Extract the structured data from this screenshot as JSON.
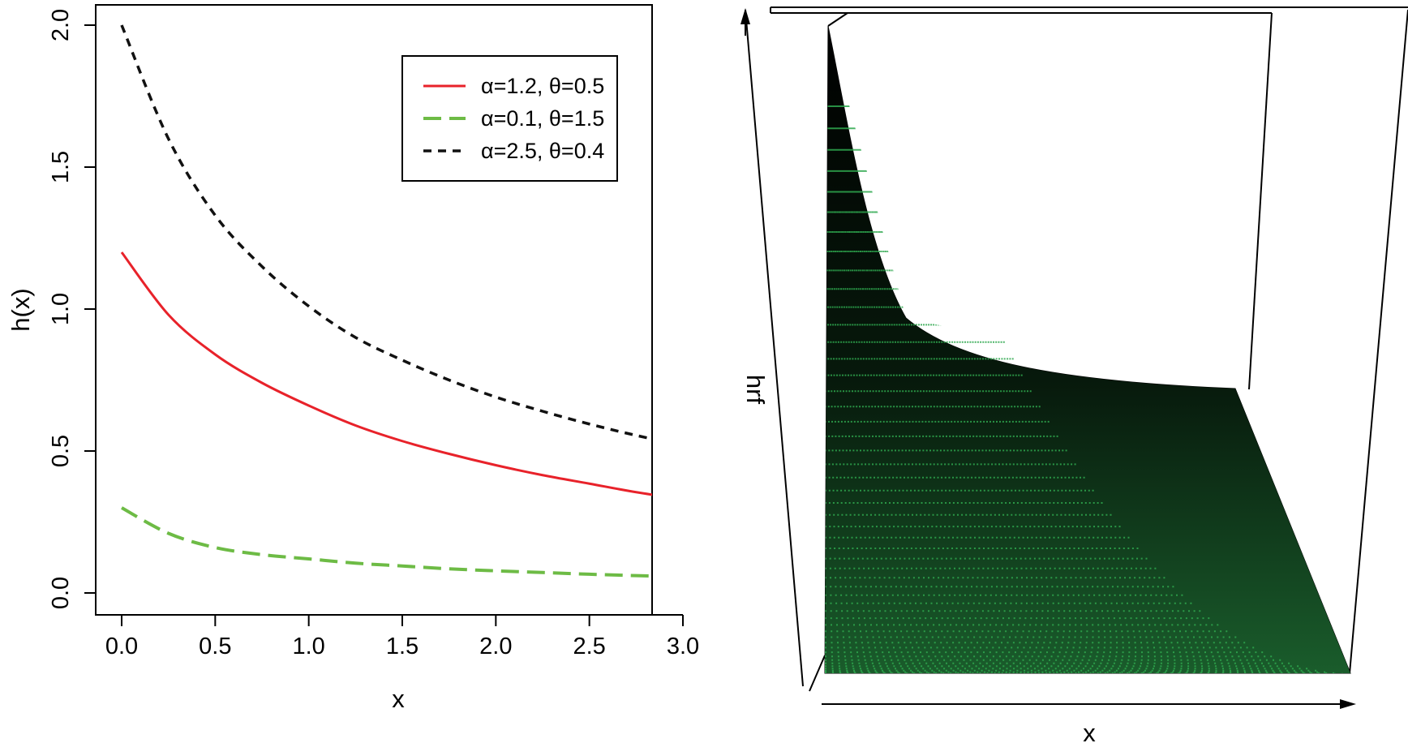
{
  "chart_data": [
    {
      "type": "line",
      "title": "",
      "xlabel": "x",
      "ylabel": "h(x)",
      "xlim": [
        0,
        3
      ],
      "ylim": [
        0,
        2
      ],
      "xticks": [
        "0.0",
        "0.5",
        "1.0",
        "1.5",
        "2.0",
        "2.5",
        "3.0"
      ],
      "yticks": [
        "0.0",
        "0.5",
        "1.0",
        "1.5",
        "2.0"
      ],
      "grid": false,
      "legend_position": "top-right",
      "x": [
        0,
        0.25,
        0.5,
        0.75,
        1.0,
        1.25,
        1.5,
        1.75,
        2.0,
        2.25,
        2.5,
        2.75,
        3.0
      ],
      "series": [
        {
          "name": "α=1.2, θ=0.5",
          "color": "#e8222a",
          "line_style": "solid",
          "values": [
            1.2,
            0.98,
            0.84,
            0.74,
            0.66,
            0.59,
            0.535,
            0.49,
            0.45,
            0.415,
            0.385,
            0.355,
            0.33
          ]
        },
        {
          "name": "α=0.1, θ=1.5",
          "color": "#6dbb45",
          "line_style": "long-dash",
          "values": [
            0.3,
            0.21,
            0.16,
            0.135,
            0.12,
            0.105,
            0.095,
            0.085,
            0.078,
            0.072,
            0.066,
            0.061,
            0.057
          ]
        },
        {
          "name": "α=2.5, θ=0.4",
          "color": "#111111",
          "line_style": "short-dash",
          "values": [
            2.0,
            1.6,
            1.33,
            1.15,
            1.01,
            0.9,
            0.82,
            0.75,
            0.69,
            0.64,
            0.595,
            0.555,
            0.52
          ]
        }
      ]
    },
    {
      "type": "surface",
      "title": "",
      "xlabel": "x",
      "zlabel": "hrf",
      "surface_color": "#000000",
      "point_color": "#2fa84f"
    }
  ]
}
